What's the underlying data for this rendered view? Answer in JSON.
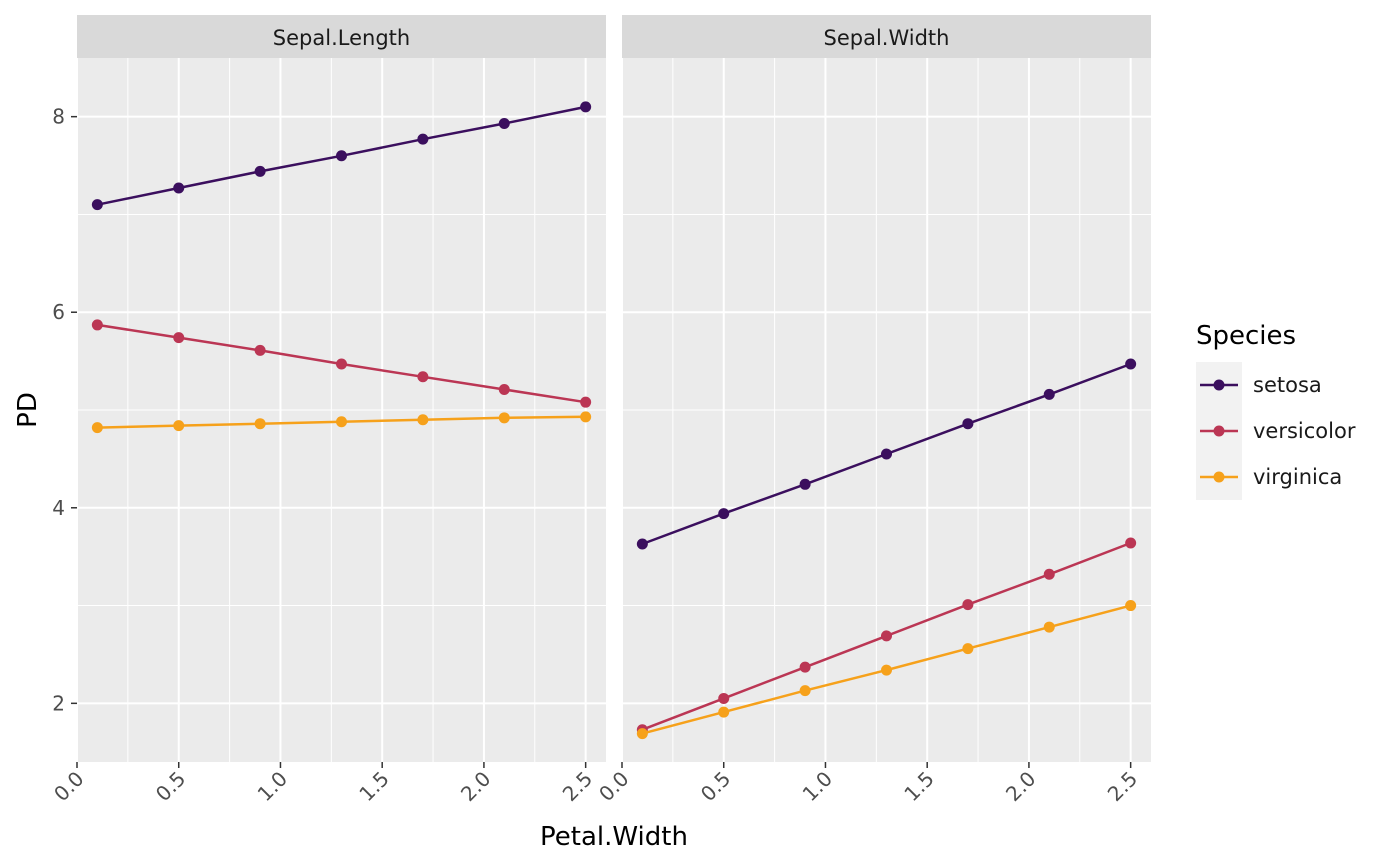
{
  "chart_data": {
    "type": "line",
    "xlabel": "Petal.Width",
    "ylabel": "PD",
    "x": [
      0.1,
      0.5,
      0.9,
      1.3,
      1.7,
      2.1,
      2.5
    ],
    "xlim": [
      0.0,
      2.6
    ],
    "x_ticks": [
      0.0,
      0.5,
      1.0,
      1.5,
      2.0,
      2.5
    ],
    "x_tick_labels": [
      "0.0",
      "0.5",
      "1.0",
      "1.5",
      "2.0",
      "2.5"
    ],
    "ylim": [
      1.4,
      8.6
    ],
    "y_ticks": [
      2,
      4,
      6,
      8
    ],
    "y_tick_labels": [
      "2",
      "4",
      "6",
      "8"
    ],
    "grid": true,
    "legend": {
      "title": "Species",
      "placement": "right",
      "entries": [
        {
          "name": "setosa",
          "color": "#3b0f5e"
        },
        {
          "name": "versicolor",
          "color": "#bb3654"
        },
        {
          "name": "virginica",
          "color": "#f6a11b"
        }
      ]
    },
    "panels": [
      {
        "title": "Sepal.Length",
        "series": [
          {
            "name": "setosa",
            "values": [
              7.1,
              7.27,
              7.44,
              7.6,
              7.77,
              7.93,
              8.1
            ]
          },
          {
            "name": "versicolor",
            "values": [
              5.87,
              5.74,
              5.61,
              5.47,
              5.34,
              5.21,
              5.08
            ]
          },
          {
            "name": "virginica",
            "values": [
              4.82,
              4.84,
              4.86,
              4.88,
              4.9,
              4.92,
              4.93
            ]
          }
        ]
      },
      {
        "title": "Sepal.Width",
        "series": [
          {
            "name": "setosa",
            "values": [
              3.63,
              3.94,
              4.24,
              4.55,
              4.86,
              5.16,
              5.47
            ]
          },
          {
            "name": "versicolor",
            "values": [
              1.73,
              2.05,
              2.37,
              2.69,
              3.01,
              3.32,
              3.64
            ]
          },
          {
            "name": "virginica",
            "values": [
              1.69,
              1.91,
              2.13,
              2.34,
              2.56,
              2.78,
              3.0
            ]
          }
        ]
      }
    ]
  }
}
